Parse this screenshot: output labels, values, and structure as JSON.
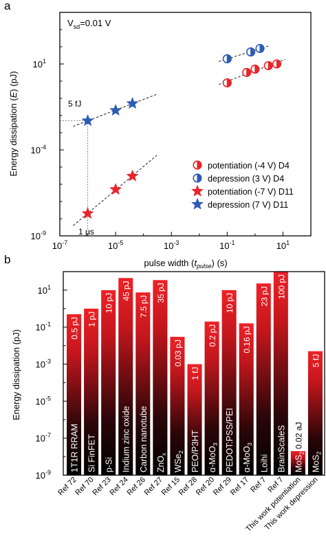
{
  "chart_data": [
    {
      "panel_label": "a",
      "type": "scatter",
      "x_scale": "log",
      "y_scale": "log",
      "xlim": [
        "10^-7",
        "10^2"
      ],
      "ylim": [
        "10^-9",
        "10^4"
      ],
      "x_tick_labels": [
        "10",
        "10",
        "10",
        "10",
        "10"
      ],
      "x_tick_exponents": [
        "-7",
        "-5",
        "-3",
        "-1",
        "1"
      ],
      "x_tick_values": [
        1e-07,
        1e-05,
        0.001,
        0.1,
        10
      ],
      "y_tick_labels": [
        "10",
        "10",
        "10"
      ],
      "y_tick_exponents": [
        "-9",
        "-4",
        "1"
      ],
      "y_tick_values": [
        1e-09,
        0.0001,
        10
      ],
      "xlabel_pre": "pulse width (",
      "xlabel_var": "t",
      "xlabel_sub": "pulse",
      "xlabel_post": ") (s)",
      "ylabel_pre": "Energy dissipation (",
      "ylabel_var": "E",
      "ylabel_post": ") (pJ)",
      "cond_main": "V",
      "cond_sub": "sd",
      "cond_post": "=0.01 V",
      "annotation_energy": "5 fJ",
      "annotation_energy_value": 0.005,
      "annotation_time": "1 μs",
      "annotation_time_value": 1e-06,
      "legend_position": "bottom-right",
      "series": [
        {
          "name": "potentiation (-4 V) D4",
          "marker": "half-circle",
          "color": "#e8262b",
          "x": [
            0.1,
            0.5,
            1,
            3,
            6
          ],
          "y": [
            0.8,
            3.2,
            5.0,
            8.0,
            10.0
          ]
        },
        {
          "name": "depression    (3 V) D4",
          "marker": "half-circle",
          "color": "#2e5bb5",
          "x": [
            0.1,
            0.7,
            1.5
          ],
          "y": [
            20,
            50,
            80
          ]
        },
        {
          "name": "potentiation (-7 V) D11",
          "marker": "star",
          "color": "#e8262b",
          "x": [
            1e-06,
            1e-05,
            4e-05
          ],
          "y": [
            2e-08,
            5e-07,
            3e-06
          ]
        },
        {
          "name": "depression    (7 V) D11",
          "marker": "star",
          "color": "#2e5bb5",
          "x": [
            1e-06,
            1e-05,
            4e-05
          ],
          "y": [
            0.005,
            0.02,
            0.05
          ]
        }
      ]
    },
    {
      "panel_label": "b",
      "type": "bar",
      "y_scale": "log",
      "ylim": [
        "10^-9",
        "10^2"
      ],
      "y_tick_labels": [
        "10",
        "10",
        "10",
        "10",
        "10",
        "10"
      ],
      "y_tick_exponents": [
        "-9",
        "-7",
        "-5",
        "-3",
        "-1",
        "1"
      ],
      "y_tick_values": [
        1e-09,
        1e-07,
        1e-05,
        0.001,
        0.1,
        10
      ],
      "ylabel": "Energy dissipation (pJ)",
      "categories": [
        "Ref 72",
        "Ref 70",
        "Ref 23",
        "Ref 24",
        "Ref 26",
        "Ref 27",
        "Ref 15",
        "Ref 28",
        "Ref 20",
        "Ref 29",
        "Ref 17",
        "Ref 7",
        "Ref 7",
        "This work potentiation",
        "This work depression"
      ],
      "device_names": [
        "1T1R RRAM",
        "Si FinFET",
        "p-Si",
        "Indium zinc oxide",
        "Carbon nanotube",
        "ZnO",
        "WSe",
        "PEO/P3HT",
        "α-MoO",
        "PEDOT:PSS/PEI",
        "α-MoO",
        "Loihi",
        "BrainScaleS",
        "MoS",
        "MoS"
      ],
      "device_subscripts": [
        "",
        "",
        "",
        "",
        "",
        "x",
        "2",
        "",
        "3",
        "",
        "3",
        "",
        "",
        "2",
        "2"
      ],
      "value_labels": [
        "0.5 pJ",
        "1 pJ",
        "10 pJ",
        "45 pJ",
        "7.5 pJ",
        "35 pJ",
        "0.03 pJ",
        "1 fJ",
        "0.2 pJ",
        "10 pJ",
        "0.16 pJ",
        "23 pJ",
        "100 pJ",
        "0.02 aJ",
        "5 fJ"
      ],
      "values": [
        0.5,
        1,
        10,
        45,
        7.5,
        35,
        0.03,
        0.001,
        0.2,
        10,
        0.16,
        23,
        100,
        2e-08,
        0.005
      ],
      "bar_color": "#e8262b"
    }
  ]
}
